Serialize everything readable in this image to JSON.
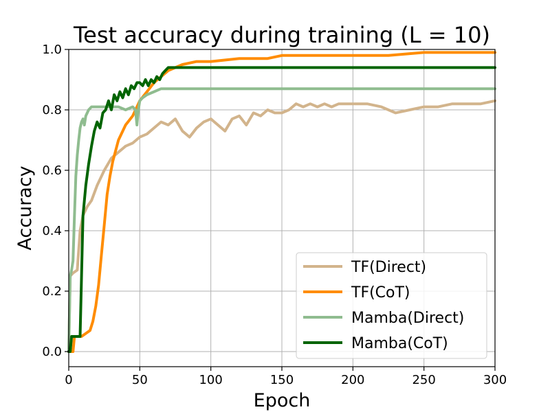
{
  "chart_data": {
    "type": "line",
    "title": "Test accuracy during training (L = 10)",
    "xlabel": "Epoch",
    "ylabel": "Accuracy",
    "xlim": [
      0,
      300
    ],
    "ylim": [
      -0.05,
      1.0
    ],
    "xticks": [
      0,
      50,
      100,
      150,
      200,
      250,
      300
    ],
    "yticks": [
      0.0,
      0.2,
      0.4,
      0.6,
      0.8,
      1.0
    ],
    "xtick_labels": [
      "0",
      "50",
      "100",
      "150",
      "200",
      "250",
      "300"
    ],
    "ytick_labels": [
      "0.0",
      "0.2",
      "0.4",
      "0.6",
      "0.8",
      "1.0"
    ],
    "grid": true,
    "legend_position": "lower-right",
    "series": [
      {
        "name": "TF(Direct)",
        "color": "#d2b48c",
        "points": [
          [
            0,
            0.0
          ],
          [
            1,
            0.25
          ],
          [
            3,
            0.26
          ],
          [
            6,
            0.27
          ],
          [
            8,
            0.4
          ],
          [
            10,
            0.45
          ],
          [
            13,
            0.48
          ],
          [
            16,
            0.5
          ],
          [
            20,
            0.55
          ],
          [
            25,
            0.6
          ],
          [
            30,
            0.64
          ],
          [
            35,
            0.66
          ],
          [
            40,
            0.68
          ],
          [
            45,
            0.69
          ],
          [
            50,
            0.71
          ],
          [
            55,
            0.72
          ],
          [
            60,
            0.74
          ],
          [
            65,
            0.76
          ],
          [
            70,
            0.75
          ],
          [
            75,
            0.77
          ],
          [
            80,
            0.73
          ],
          [
            85,
            0.71
          ],
          [
            90,
            0.74
          ],
          [
            95,
            0.76
          ],
          [
            100,
            0.77
          ],
          [
            105,
            0.75
          ],
          [
            110,
            0.73
          ],
          [
            115,
            0.77
          ],
          [
            120,
            0.78
          ],
          [
            125,
            0.75
          ],
          [
            130,
            0.79
          ],
          [
            135,
            0.78
          ],
          [
            140,
            0.8
          ],
          [
            145,
            0.79
          ],
          [
            150,
            0.79
          ],
          [
            155,
            0.8
          ],
          [
            160,
            0.82
          ],
          [
            165,
            0.81
          ],
          [
            170,
            0.82
          ],
          [
            175,
            0.81
          ],
          [
            180,
            0.82
          ],
          [
            185,
            0.81
          ],
          [
            190,
            0.82
          ],
          [
            200,
            0.82
          ],
          [
            210,
            0.82
          ],
          [
            220,
            0.81
          ],
          [
            225,
            0.8
          ],
          [
            230,
            0.79
          ],
          [
            240,
            0.8
          ],
          [
            250,
            0.81
          ],
          [
            260,
            0.81
          ],
          [
            270,
            0.82
          ],
          [
            280,
            0.82
          ],
          [
            290,
            0.82
          ],
          [
            300,
            0.83
          ]
        ]
      },
      {
        "name": "TF(CoT)",
        "color": "#ff8c00",
        "points": [
          [
            0,
            0.0
          ],
          [
            3,
            0.0
          ],
          [
            4,
            0.05
          ],
          [
            6,
            0.05
          ],
          [
            9,
            0.05
          ],
          [
            12,
            0.06
          ],
          [
            15,
            0.07
          ],
          [
            17,
            0.1
          ],
          [
            19,
            0.15
          ],
          [
            21,
            0.22
          ],
          [
            23,
            0.32
          ],
          [
            25,
            0.42
          ],
          [
            27,
            0.52
          ],
          [
            29,
            0.58
          ],
          [
            31,
            0.63
          ],
          [
            35,
            0.7
          ],
          [
            40,
            0.75
          ],
          [
            45,
            0.78
          ],
          [
            50,
            0.83
          ],
          [
            55,
            0.86
          ],
          [
            60,
            0.89
          ],
          [
            65,
            0.91
          ],
          [
            70,
            0.93
          ],
          [
            80,
            0.95
          ],
          [
            90,
            0.96
          ],
          [
            100,
            0.96
          ],
          [
            120,
            0.97
          ],
          [
            140,
            0.97
          ],
          [
            150,
            0.98
          ],
          [
            175,
            0.98
          ],
          [
            200,
            0.98
          ],
          [
            225,
            0.98
          ],
          [
            250,
            0.99
          ],
          [
            275,
            0.99
          ],
          [
            300,
            0.99
          ]
        ]
      },
      {
        "name": "Mamba(Direct)",
        "color": "#8fbc8f",
        "points": [
          [
            0,
            0.0
          ],
          [
            1,
            0.25
          ],
          [
            2,
            0.27
          ],
          [
            3,
            0.3
          ],
          [
            4,
            0.45
          ],
          [
            5,
            0.58
          ],
          [
            6,
            0.65
          ],
          [
            7,
            0.7
          ],
          [
            8,
            0.74
          ],
          [
            9,
            0.76
          ],
          [
            10,
            0.77
          ],
          [
            11,
            0.75
          ],
          [
            12,
            0.78
          ],
          [
            14,
            0.8
          ],
          [
            16,
            0.81
          ],
          [
            20,
            0.81
          ],
          [
            25,
            0.81
          ],
          [
            30,
            0.81
          ],
          [
            35,
            0.81
          ],
          [
            40,
            0.8
          ],
          [
            45,
            0.81
          ],
          [
            47,
            0.8
          ],
          [
            48,
            0.75
          ],
          [
            49,
            0.8
          ],
          [
            50,
            0.83
          ],
          [
            52,
            0.84
          ],
          [
            55,
            0.85
          ],
          [
            60,
            0.86
          ],
          [
            65,
            0.87
          ],
          [
            70,
            0.87
          ],
          [
            80,
            0.87
          ],
          [
            100,
            0.87
          ],
          [
            150,
            0.87
          ],
          [
            200,
            0.87
          ],
          [
            250,
            0.87
          ],
          [
            300,
            0.87
          ]
        ]
      },
      {
        "name": "Mamba(CoT)",
        "color": "#006400",
        "points": [
          [
            0,
            0.0
          ],
          [
            1,
            0.0
          ],
          [
            2,
            0.05
          ],
          [
            4,
            0.05
          ],
          [
            6,
            0.05
          ],
          [
            8,
            0.05
          ],
          [
            9,
            0.25
          ],
          [
            10,
            0.45
          ],
          [
            12,
            0.55
          ],
          [
            14,
            0.62
          ],
          [
            16,
            0.68
          ],
          [
            18,
            0.73
          ],
          [
            20,
            0.76
          ],
          [
            22,
            0.74
          ],
          [
            24,
            0.79
          ],
          [
            26,
            0.8
          ],
          [
            28,
            0.83
          ],
          [
            30,
            0.8
          ],
          [
            32,
            0.85
          ],
          [
            34,
            0.83
          ],
          [
            36,
            0.86
          ],
          [
            38,
            0.84
          ],
          [
            40,
            0.87
          ],
          [
            42,
            0.85
          ],
          [
            44,
            0.88
          ],
          [
            46,
            0.87
          ],
          [
            48,
            0.89
          ],
          [
            50,
            0.89
          ],
          [
            52,
            0.88
          ],
          [
            54,
            0.9
          ],
          [
            56,
            0.88
          ],
          [
            58,
            0.9
          ],
          [
            60,
            0.89
          ],
          [
            62,
            0.91
          ],
          [
            64,
            0.9
          ],
          [
            66,
            0.92
          ],
          [
            68,
            0.93
          ],
          [
            70,
            0.94
          ],
          [
            80,
            0.94
          ],
          [
            90,
            0.94
          ],
          [
            100,
            0.94
          ],
          [
            150,
            0.94
          ],
          [
            200,
            0.94
          ],
          [
            250,
            0.94
          ],
          [
            300,
            0.94
          ]
        ]
      }
    ]
  }
}
